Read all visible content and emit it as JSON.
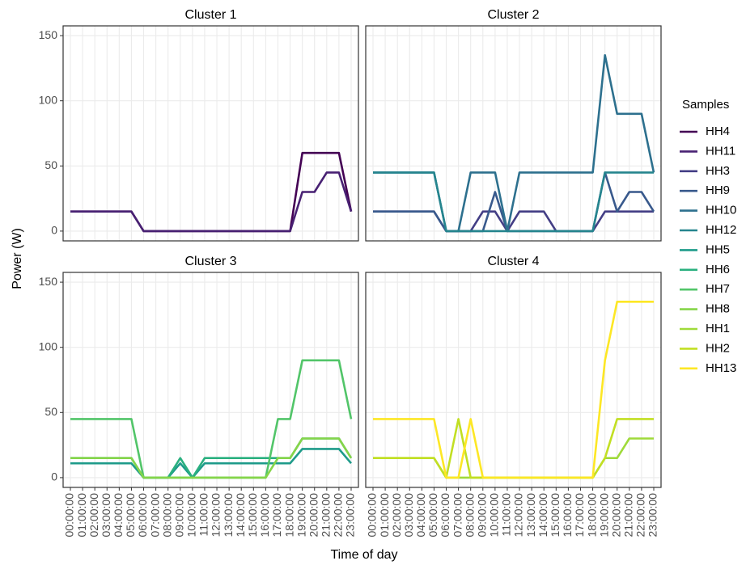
{
  "y_label": "Power (W)",
  "x_label": "Time of day",
  "legend_title": "Samples",
  "chart_data": [
    {
      "type": "line",
      "title": "Cluster 1",
      "x": [
        "00:00:00",
        "01:00:00",
        "02:00:00",
        "03:00:00",
        "04:00:00",
        "05:00:00",
        "06:00:00",
        "07:00:00",
        "08:00:00",
        "09:00:00",
        "10:00:00",
        "11:00:00",
        "12:00:00",
        "13:00:00",
        "14:00:00",
        "15:00:00",
        "16:00:00",
        "17:00:00",
        "18:00:00",
        "19:00:00",
        "20:00:00",
        "21:00:00",
        "22:00:00",
        "23:00:00"
      ],
      "ylim": [
        -7.5,
        157.5
      ],
      "yticks": [
        0,
        50,
        100,
        150
      ],
      "grid": true,
      "series": [
        {
          "name": "HH4",
          "color": "#440154",
          "values": [
            15,
            15,
            15,
            15,
            15,
            15,
            0,
            0,
            0,
            0,
            0,
            0,
            0,
            0,
            0,
            0,
            0,
            0,
            0,
            60,
            60,
            60,
            60,
            15
          ]
        },
        {
          "name": "HH11",
          "color": "#482173",
          "values": [
            15,
            15,
            15,
            15,
            15,
            15,
            0,
            0,
            0,
            0,
            0,
            0,
            0,
            0,
            0,
            0,
            0,
            0,
            0,
            30,
            30,
            45,
            45,
            15
          ]
        }
      ]
    },
    {
      "type": "line",
      "title": "Cluster 2",
      "x": [
        "00:00:00",
        "01:00:00",
        "02:00:00",
        "03:00:00",
        "04:00:00",
        "05:00:00",
        "06:00:00",
        "07:00:00",
        "08:00:00",
        "09:00:00",
        "10:00:00",
        "11:00:00",
        "12:00:00",
        "13:00:00",
        "14:00:00",
        "15:00:00",
        "16:00:00",
        "17:00:00",
        "18:00:00",
        "19:00:00",
        "20:00:00",
        "21:00:00",
        "22:00:00",
        "23:00:00"
      ],
      "ylim": [
        -7.5,
        157.5
      ],
      "yticks": [
        0,
        50,
        100,
        150
      ],
      "grid": true,
      "series": [
        {
          "name": "HH3",
          "color": "#433e85",
          "values": [
            15,
            15,
            15,
            15,
            15,
            15,
            0,
            0,
            0,
            15,
            15,
            0,
            15,
            15,
            15,
            0,
            0,
            0,
            0,
            15,
            15,
            15,
            15,
            15
          ]
        },
        {
          "name": "HH9",
          "color": "#38598c",
          "values": [
            15,
            15,
            15,
            15,
            15,
            15,
            0,
            0,
            0,
            0,
            30,
            0,
            0,
            0,
            0,
            0,
            0,
            0,
            0,
            45,
            15,
            30,
            30,
            15
          ]
        },
        {
          "name": "HH10",
          "color": "#2d708e",
          "values": [
            45,
            45,
            45,
            45,
            45,
            45,
            0,
            0,
            45,
            45,
            45,
            0,
            45,
            45,
            45,
            45,
            45,
            45,
            45,
            135,
            90,
            90,
            90,
            45
          ]
        },
        {
          "name": "HH12",
          "color": "#25858e",
          "values": [
            45,
            45,
            45,
            45,
            45,
            45,
            0,
            0,
            0,
            0,
            0,
            0,
            0,
            0,
            0,
            0,
            0,
            0,
            0,
            45,
            45,
            45,
            45,
            45
          ]
        }
      ]
    },
    {
      "type": "line",
      "title": "Cluster 3",
      "x": [
        "00:00:00",
        "01:00:00",
        "02:00:00",
        "03:00:00",
        "04:00:00",
        "05:00:00",
        "06:00:00",
        "07:00:00",
        "08:00:00",
        "09:00:00",
        "10:00:00",
        "11:00:00",
        "12:00:00",
        "13:00:00",
        "14:00:00",
        "15:00:00",
        "16:00:00",
        "17:00:00",
        "18:00:00",
        "19:00:00",
        "20:00:00",
        "21:00:00",
        "22:00:00",
        "23:00:00"
      ],
      "ylim": [
        -7.5,
        157.5
      ],
      "yticks": [
        0,
        50,
        100,
        150
      ],
      "grid": true,
      "series": [
        {
          "name": "HH5",
          "color": "#1e9b8a",
          "values": [
            11,
            11,
            11,
            11,
            11,
            11,
            0,
            0,
            0,
            11,
            0,
            11,
            11,
            11,
            11,
            11,
            11,
            11,
            11,
            22,
            22,
            22,
            22,
            11
          ]
        },
        {
          "name": "HH6",
          "color": "#2ab07f",
          "values": [
            15,
            15,
            15,
            15,
            15,
            15,
            0,
            0,
            0,
            15,
            0,
            15,
            15,
            15,
            15,
            15,
            15,
            15,
            15,
            30,
            30,
            30,
            30,
            15
          ]
        },
        {
          "name": "HH7",
          "color": "#52c569",
          "values": [
            45,
            45,
            45,
            45,
            45,
            45,
            0,
            0,
            0,
            0,
            0,
            0,
            0,
            0,
            0,
            0,
            0,
            45,
            45,
            90,
            90,
            90,
            90,
            45
          ]
        },
        {
          "name": "HH8",
          "color": "#86d549",
          "values": [
            15,
            15,
            15,
            15,
            15,
            15,
            0,
            0,
            0,
            0,
            0,
            0,
            0,
            0,
            0,
            0,
            0,
            15,
            15,
            30,
            30,
            30,
            30,
            15
          ]
        }
      ]
    },
    {
      "type": "line",
      "title": "Cluster 4",
      "x": [
        "00:00:00",
        "01:00:00",
        "02:00:00",
        "03:00:00",
        "04:00:00",
        "05:00:00",
        "06:00:00",
        "07:00:00",
        "08:00:00",
        "09:00:00",
        "10:00:00",
        "11:00:00",
        "12:00:00",
        "13:00:00",
        "14:00:00",
        "15:00:00",
        "16:00:00",
        "17:00:00",
        "18:00:00",
        "19:00:00",
        "20:00:00",
        "21:00:00",
        "22:00:00",
        "23:00:00"
      ],
      "ylim": [
        -7.5,
        157.5
      ],
      "yticks": [
        0,
        50,
        100,
        150
      ],
      "grid": true,
      "series": [
        {
          "name": "HH1",
          "color": "#9fda3a",
          "values": [
            15,
            15,
            15,
            15,
            15,
            15,
            0,
            0,
            0,
            0,
            0,
            0,
            0,
            0,
            0,
            0,
            0,
            0,
            0,
            15,
            15,
            30,
            30,
            30
          ]
        },
        {
          "name": "HH2",
          "color": "#c2df23",
          "values": [
            15,
            15,
            15,
            15,
            15,
            15,
            0,
            45,
            0,
            0,
            0,
            0,
            0,
            0,
            0,
            0,
            0,
            0,
            0,
            15,
            45,
            45,
            45,
            45
          ]
        },
        {
          "name": "HH13",
          "color": "#fde725",
          "values": [
            45,
            45,
            45,
            45,
            45,
            45,
            0,
            0,
            45,
            0,
            0,
            0,
            0,
            0,
            0,
            0,
            0,
            0,
            0,
            90,
            135,
            135,
            135,
            135
          ]
        }
      ]
    }
  ]
}
